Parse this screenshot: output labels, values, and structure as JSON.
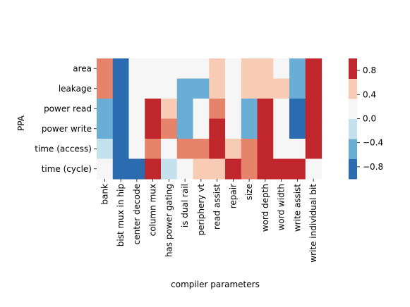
{
  "chart_data": {
    "type": "heatmap",
    "title": "",
    "xlabel": "compiler parameters",
    "ylabel": "PPA",
    "x_categories": [
      "bank",
      "bist mux in hip",
      "center decode",
      "column mux",
      "has power gating",
      "is dual rail",
      "periphery vt",
      "read assist",
      "repair",
      "size",
      "word depth",
      "word width",
      "write assist",
      "write individual bit"
    ],
    "y_categories": [
      "area",
      "leakage",
      "power read",
      "power write",
      "time (access)",
      "time (cycle)"
    ],
    "values": [
      [
        0.5,
        -0.9,
        0.0,
        0.0,
        0.0,
        0.0,
        0.0,
        0.3,
        0.0,
        0.3,
        0.3,
        0.0,
        -0.6,
        0.9
      ],
      [
        0.5,
        -0.9,
        0.0,
        0.0,
        0.0,
        -0.6,
        -0.6,
        0.3,
        0.0,
        0.3,
        0.3,
        0.3,
        -0.6,
        0.9
      ],
      [
        -0.6,
        -0.9,
        0.0,
        0.9,
        0.3,
        -0.6,
        0.0,
        0.5,
        0.0,
        -0.6,
        0.9,
        0.0,
        -0.9,
        0.9
      ],
      [
        -0.6,
        -0.9,
        0.0,
        0.9,
        0.5,
        -0.6,
        0.0,
        0.9,
        0.0,
        -0.6,
        0.9,
        0.0,
        -0.9,
        0.9
      ],
      [
        -0.3,
        -0.9,
        0.0,
        0.5,
        0.0,
        0.5,
        0.5,
        0.9,
        0.3,
        0.5,
        0.9,
        0.0,
        0.0,
        0.9
      ],
      [
        0.0,
        -0.9,
        -0.9,
        0.9,
        -0.3,
        0.0,
        0.3,
        0.3,
        0.9,
        0.5,
        0.9,
        0.9,
        0.9,
        0.0
      ]
    ],
    "colorbar": {
      "range": [
        -1,
        1
      ],
      "ticks": [
        "0.8",
        "0.4",
        "0.0",
        "−0.4",
        "−0.8"
      ],
      "tick_values": [
        0.8,
        0.4,
        0.0,
        -0.4,
        -0.8
      ],
      "bins": [
        {
          "from": -1.0,
          "to": -0.6667,
          "color": "#2b6cb0"
        },
        {
          "from": -0.6667,
          "to": -0.3333,
          "color": "#6aaed6"
        },
        {
          "from": -0.3333,
          "to": 0.0,
          "color": "#c6e1ee"
        },
        {
          "from": 0.0,
          "to": 0.3333,
          "color": "#f6f6f6"
        },
        {
          "from": 0.3333,
          "to": 0.6667,
          "color": "#f8cbb5"
        },
        {
          "from": 0.6667,
          "to": 1.0,
          "color": "#c0272d"
        }
      ]
    },
    "colors": {
      "strong_neg": "#2b6cb0",
      "mid_neg": "#6aaed6",
      "weak_neg": "#c6e1ee",
      "neutral": "#f6f6f6",
      "weak_pos": "#f8cbb5",
      "mid_pos": "#e5846a",
      "strong_pos": "#c0272d"
    }
  }
}
